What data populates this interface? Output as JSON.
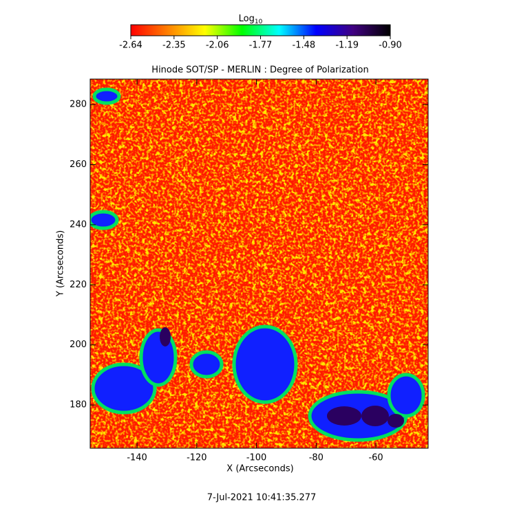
{
  "chart_data": {
    "type": "image",
    "title": "Hinode SOT/SP - MERLIN : Degree of Polarization",
    "x_label": "X (Arcseconds)",
    "y_label": "Y (Arcseconds)",
    "xlim": [
      -155.7,
      -42.5
    ],
    "xticks": [
      -140,
      -120,
      -100,
      -80,
      -60
    ],
    "ylim": [
      165.6,
      288.5
    ],
    "yticks": [
      180,
      200,
      220,
      240,
      260,
      280
    ],
    "colorbar_label": "Log",
    "colorbar_label_sub": "10",
    "clim": [
      -2.64,
      -0.9
    ],
    "cticks": [
      -2.64,
      -2.35,
      -2.06,
      -1.77,
      -1.48,
      -1.19,
      {
        "value": -0.9,
        "label": "-0.90"
      }
    ],
    "colormap": [
      "#ff0000",
      "#ff8000",
      "#ffff00",
      "#00ff00",
      "#00ffff",
      "#0000ff",
      "#400080",
      "#000000"
    ],
    "timestamp": "7-Jul-2021 10:41:35.277"
  }
}
